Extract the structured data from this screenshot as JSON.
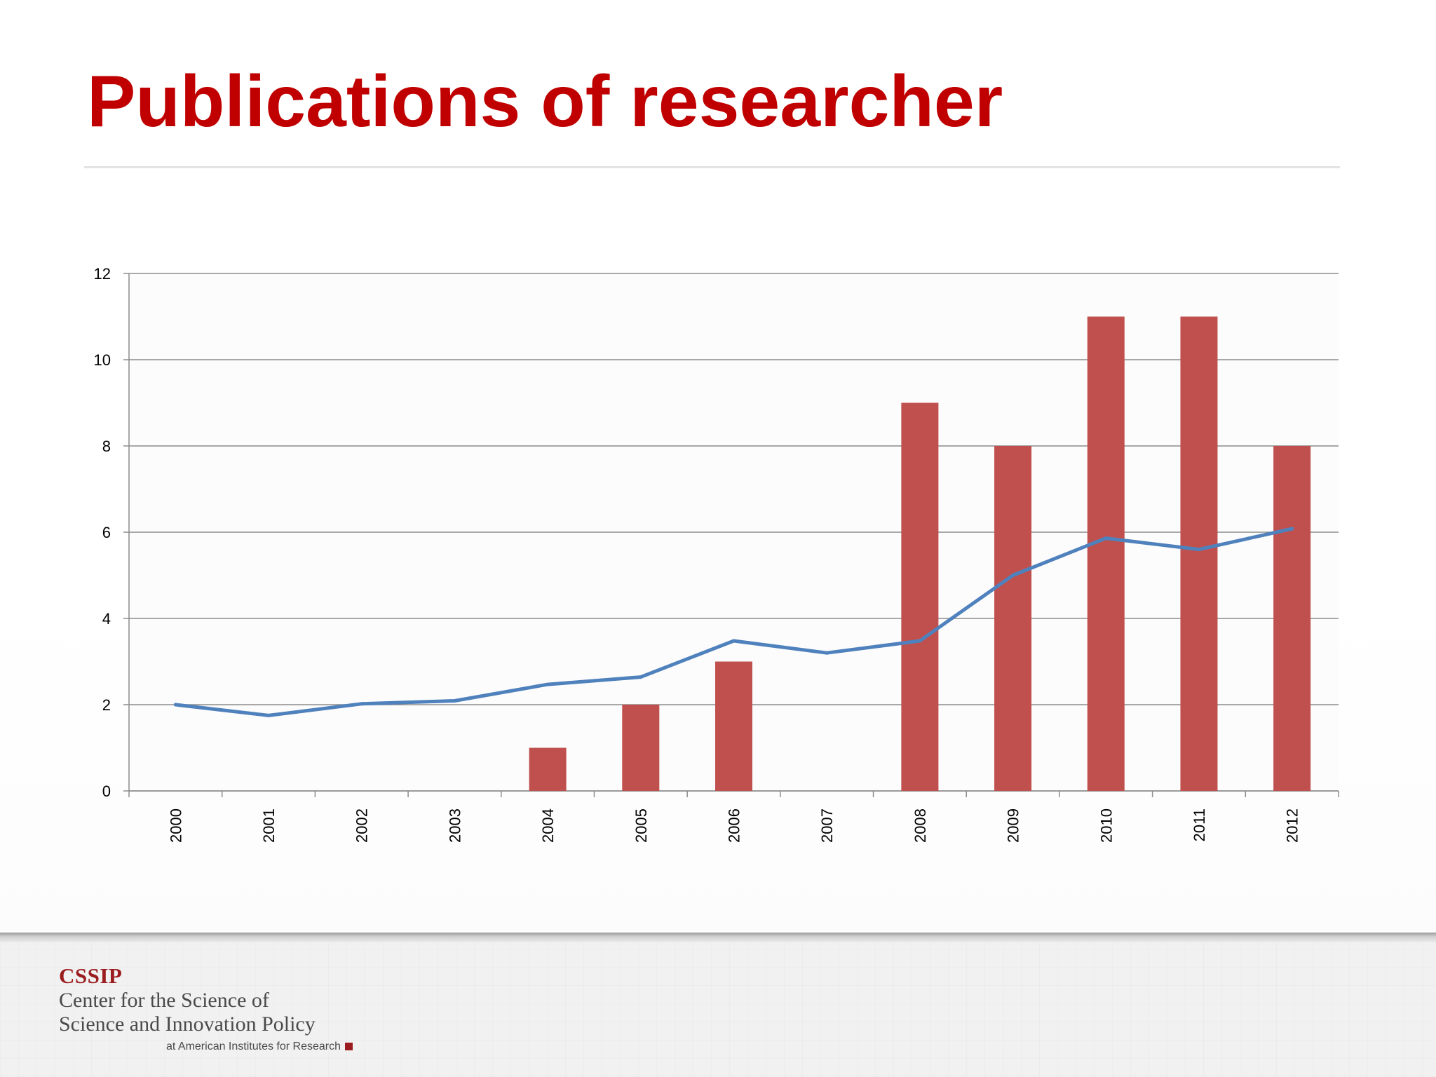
{
  "slide": {
    "title": "Publications of researcher"
  },
  "chart_data": {
    "type": "bar",
    "categories": [
      "2000",
      "2001",
      "2002",
      "2003",
      "2004",
      "2005",
      "2006",
      "2007",
      "2008",
      "2009",
      "2010",
      "2011",
      "2012"
    ],
    "series": [
      {
        "type": "bar",
        "values": [
          0,
          0,
          0,
          0,
          1,
          2,
          3,
          0,
          9,
          8,
          11,
          11,
          8
        ],
        "color": "#c0504d"
      },
      {
        "type": "line",
        "values": [
          2.0,
          1.75,
          2.02,
          2.09,
          2.47,
          2.64,
          3.48,
          3.2,
          3.48,
          5.0,
          5.86,
          5.6,
          6.08
        ],
        "color": "#4f81bd"
      }
    ],
    "ylim": [
      0,
      12
    ],
    "yticks": [
      0,
      2,
      4,
      6,
      8,
      10,
      12
    ],
    "grid": true,
    "legend": false,
    "xlabel": "",
    "ylabel": ""
  },
  "footer": {
    "logo_acronym": "CSSIP",
    "logo_line1": "Center for the Science of",
    "logo_line2": "Science and Innovation Policy",
    "logo_sub": "at American Institutes for Research",
    "brand_color": "#9b1c1f"
  }
}
